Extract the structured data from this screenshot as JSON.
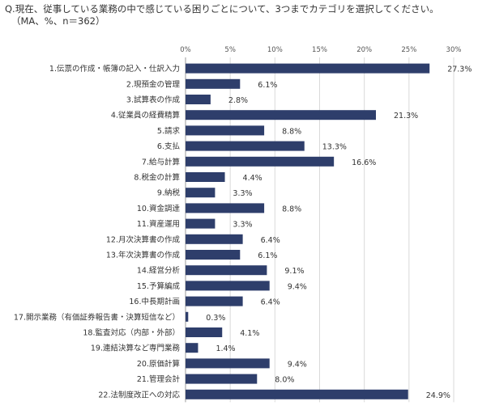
{
  "question": {
    "line1": "Q.現在、従事している業務の中で感じている困りごとについて、3つまでカテゴリを選択してください。",
    "line2": "（MA、%、n＝362）"
  },
  "colors": {
    "bar": "#2e3e6b",
    "grid": "#d9d9d9",
    "axis": "#999999"
  },
  "chart_data": {
    "type": "bar",
    "orientation": "horizontal",
    "title": "",
    "xlim": [
      0,
      30
    ],
    "x_ticks": [
      "0%",
      "5%",
      "10%",
      "15%",
      "20%",
      "25%",
      "30%"
    ],
    "tick_values": [
      0,
      5,
      10,
      15,
      20,
      25,
      30
    ],
    "grid": true,
    "categories": [
      "1.伝票の作成・帳簿の記入・仕訳入力",
      "2.現預金の管理",
      "3.試算表の作成",
      "4.従業員の経費精算",
      "5.請求",
      "6.支払",
      "7.給与計算",
      "8.税金の計算",
      "9.納税",
      "10.資金調達",
      "11.資産運用",
      "12.月次決算書の作成",
      "13.年次決算書の作成",
      "14.経営分析",
      "15.予算編成",
      "16.中長期計画",
      "17.開示業務（有価証券報告書・決算短信など）",
      "18.監査対応（内部・外部）",
      "19.連結決算など専門業務",
      "20.原価計算",
      "21.管理会計",
      "22.法制度改正への対応"
    ],
    "values": [
      27.3,
      6.1,
      2.8,
      21.3,
      8.8,
      13.3,
      16.6,
      4.4,
      3.3,
      8.8,
      3.3,
      6.4,
      6.1,
      9.1,
      9.4,
      6.4,
      0.3,
      4.1,
      1.4,
      9.4,
      8.0,
      24.9
    ],
    "value_labels": [
      "27.3%",
      "6.1%",
      "2.8%",
      "21.3%",
      "8.8%",
      "13.3%",
      "16.6%",
      "4.4%",
      "3.3%",
      "8.8%",
      "3.3%",
      "6.4%",
      "6.1%",
      "9.1%",
      "9.4%",
      "6.4%",
      "0.3%",
      "4.1%",
      "1.4%",
      "9.4%",
      "8.0%",
      "24.9%"
    ]
  }
}
